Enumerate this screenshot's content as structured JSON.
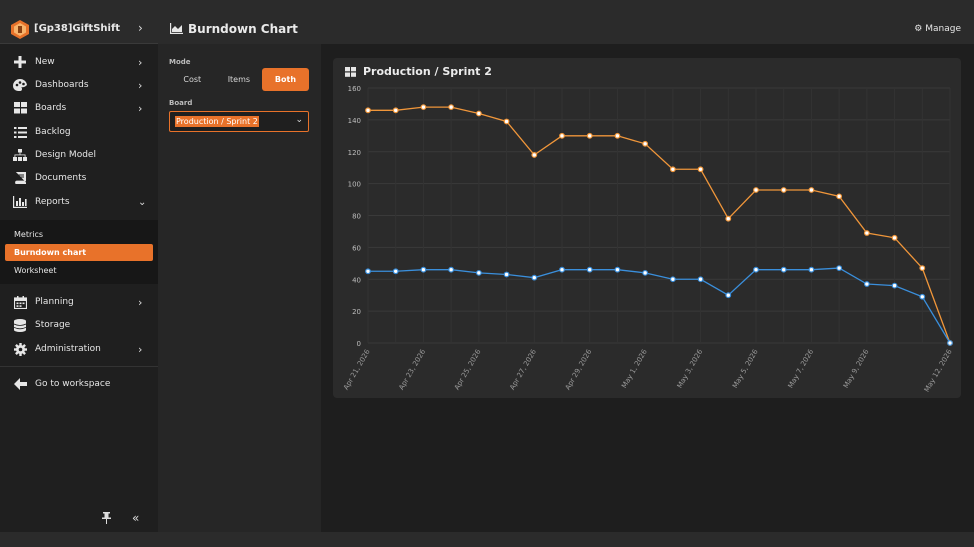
{
  "app": {
    "name": "[Gp38]GiftShift"
  },
  "page": {
    "title": "Burndown Chart",
    "manage_label": "Manage"
  },
  "sidebar": {
    "items": [
      {
        "label": "New",
        "icon": "plus-icon"
      },
      {
        "label": "Dashboards",
        "icon": "palette-icon"
      },
      {
        "label": "Boards",
        "icon": "grid-icon"
      },
      {
        "label": "Backlog",
        "icon": "list-icon"
      },
      {
        "label": "Design Model",
        "icon": "sitemap-icon"
      },
      {
        "label": "Documents",
        "icon": "book-icon"
      },
      {
        "label": "Reports",
        "icon": "bar-chart-icon"
      }
    ],
    "report_sub": [
      {
        "label": "Metrics",
        "active": false
      },
      {
        "label": "Burndown chart",
        "active": true
      },
      {
        "label": "Worksheet",
        "active": false
      }
    ],
    "items2": [
      {
        "label": "Planning",
        "icon": "calendar-icon"
      },
      {
        "label": "Storage",
        "icon": "database-icon"
      },
      {
        "label": "Administration",
        "icon": "gear-icon"
      }
    ],
    "workspace_label": "Go to workspace"
  },
  "filters": {
    "mode_label": "Mode",
    "mode_options": [
      "Cost",
      "Items",
      "Both"
    ],
    "mode_selected": "Both",
    "board_label": "Board",
    "board_value": "Production / Sprint 2"
  },
  "card": {
    "title": "Production / Sprint 2"
  },
  "colors": {
    "accent": "#e8722a",
    "series_orange": "#f0963a",
    "series_blue": "#3a8fdc"
  },
  "chart_data": {
    "type": "line",
    "title": "Production / Sprint 2",
    "x": [
      "2026-04-21",
      "2026-04-22",
      "2026-04-23",
      "2026-04-24",
      "2026-04-25",
      "2026-04-26",
      "2026-04-27",
      "2026-04-28",
      "2026-04-29",
      "2026-04-30",
      "2026-05-01",
      "2026-05-02",
      "2026-05-03",
      "2026-05-04",
      "2026-05-05",
      "2026-05-06",
      "2026-05-07",
      "2026-05-08",
      "2026-05-09",
      "2026-05-10",
      "2026-05-11",
      "2026-05-12"
    ],
    "xticks": [
      "Apr 21, 2026",
      "Apr 23, 2026",
      "Apr 25, 2026",
      "Apr 27, 2026",
      "Apr 29, 2026",
      "May 1, 2026",
      "May 3, 2026",
      "May 5, 2026",
      "May 7, 2026",
      "May 9, 2026",
      "May 12, 2026"
    ],
    "ylim": [
      0,
      160
    ],
    "yticks": [
      0,
      20,
      40,
      60,
      80,
      100,
      120,
      140,
      160
    ],
    "grid": true,
    "series": [
      {
        "color": "#f0963a",
        "values": [
          146,
          146,
          148,
          148,
          144,
          139,
          118,
          130,
          130,
          130,
          125,
          109,
          109,
          78,
          96,
          96,
          96,
          92,
          69,
          66,
          47,
          0
        ]
      },
      {
        "color": "#3a8fdc",
        "values": [
          45,
          45,
          46,
          46,
          44,
          43,
          41,
          46,
          46,
          46,
          44,
          40,
          40,
          30,
          46,
          46,
          46,
          47,
          37,
          36,
          29,
          0
        ]
      }
    ]
  }
}
